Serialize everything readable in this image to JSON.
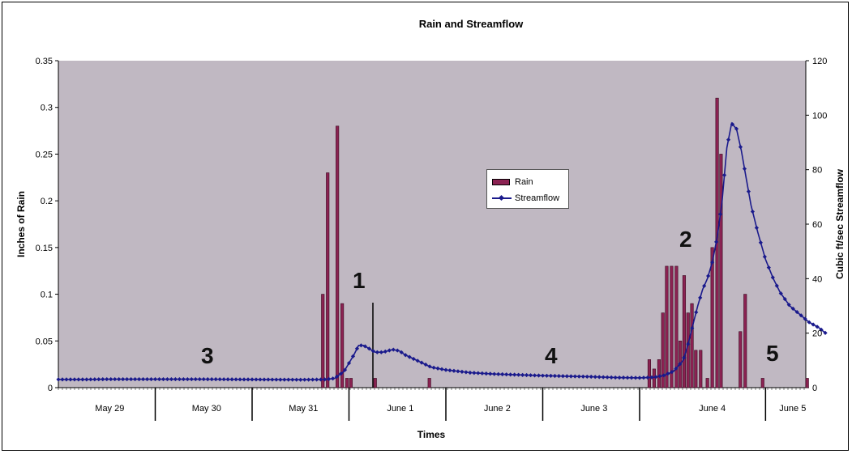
{
  "chart_data": {
    "type": "bar+line",
    "title": "Rain and Streamflow",
    "xlabel": "Times",
    "ylabel_left": "Inches of Rain",
    "ylabel_right": "Cubic ft/sec Streamflow",
    "ylim_left": [
      0,
      0.35
    ],
    "ylim_right": [
      0,
      120
    ],
    "yticks_left": [
      "0",
      "0.05",
      "0.1",
      "0.15",
      "0.2",
      "0.25",
      "0.3",
      "0.35"
    ],
    "yticks_right": [
      "0",
      "20",
      "40",
      "60",
      "80",
      "100",
      "120"
    ],
    "days": [
      "May 29",
      "May 30",
      "May 31",
      "June 1",
      "June 2",
      "June 3",
      "June 4",
      "June 5"
    ],
    "legend": {
      "position": "center-right",
      "rain_label": "Rain",
      "flow_label": "Streamflow"
    },
    "colors": {
      "plot_bg": "#c0b8c2",
      "rain": "#8b2252",
      "streamflow": "#1a1a8c"
    },
    "rain": [
      {
        "day": 2.73,
        "inches": 0.1
      },
      {
        "day": 2.78,
        "inches": 0.23
      },
      {
        "day": 2.88,
        "inches": 0.28
      },
      {
        "day": 2.93,
        "inches": 0.09
      },
      {
        "day": 2.98,
        "inches": 0.01
      },
      {
        "day": 3.02,
        "inches": 0.01
      },
      {
        "day": 3.27,
        "inches": 0.01
      },
      {
        "day": 3.83,
        "inches": 0.01
      },
      {
        "day": 6.1,
        "inches": 0.03
      },
      {
        "day": 6.15,
        "inches": 0.02
      },
      {
        "day": 6.2,
        "inches": 0.03
      },
      {
        "day": 6.24,
        "inches": 0.08
      },
      {
        "day": 6.28,
        "inches": 0.13
      },
      {
        "day": 6.33,
        "inches": 0.13
      },
      {
        "day": 6.38,
        "inches": 0.13
      },
      {
        "day": 6.42,
        "inches": 0.05
      },
      {
        "day": 6.46,
        "inches": 0.12
      },
      {
        "day": 6.5,
        "inches": 0.08
      },
      {
        "day": 6.54,
        "inches": 0.09
      },
      {
        "day": 6.58,
        "inches": 0.04
      },
      {
        "day": 6.63,
        "inches": 0.04
      },
      {
        "day": 6.7,
        "inches": 0.01
      },
      {
        "day": 6.75,
        "inches": 0.15
      },
      {
        "day": 6.8,
        "inches": 0.31
      },
      {
        "day": 6.84,
        "inches": 0.25
      },
      {
        "day": 7.04,
        "inches": 0.06
      },
      {
        "day": 7.09,
        "inches": 0.1
      },
      {
        "day": 7.27,
        "inches": 0.01
      },
      {
        "day": 7.73,
        "inches": 0.01
      }
    ],
    "streamflow": [
      [
        0.0,
        3.0
      ],
      [
        0.1,
        3.0
      ],
      [
        0.25,
        3.0
      ],
      [
        0.5,
        3.1
      ],
      [
        1.0,
        3.1
      ],
      [
        1.5,
        3.1
      ],
      [
        2.0,
        3.0
      ],
      [
        2.5,
        2.9
      ],
      [
        2.75,
        3.0
      ],
      [
        2.85,
        3.4
      ],
      [
        2.95,
        6.0
      ],
      [
        3.0,
        9.0
      ],
      [
        3.05,
        12.0
      ],
      [
        3.1,
        15.5
      ],
      [
        3.15,
        15.5
      ],
      [
        3.2,
        14.5
      ],
      [
        3.27,
        13.0
      ],
      [
        3.35,
        13.0
      ],
      [
        3.4,
        13.5
      ],
      [
        3.45,
        14.0
      ],
      [
        3.52,
        13.5
      ],
      [
        3.58,
        12.0
      ],
      [
        3.7,
        10.0
      ],
      [
        3.85,
        7.5
      ],
      [
        4.0,
        6.5
      ],
      [
        4.25,
        5.5
      ],
      [
        4.5,
        5.0
      ],
      [
        4.75,
        4.7
      ],
      [
        5.0,
        4.4
      ],
      [
        5.25,
        4.2
      ],
      [
        5.5,
        4.0
      ],
      [
        5.75,
        3.7
      ],
      [
        6.0,
        3.6
      ],
      [
        6.15,
        3.8
      ],
      [
        6.25,
        4.5
      ],
      [
        6.35,
        6.0
      ],
      [
        6.45,
        10.0
      ],
      [
        6.5,
        16.0
      ],
      [
        6.55,
        23.0
      ],
      [
        6.6,
        30.0
      ],
      [
        6.65,
        36.0
      ],
      [
        6.7,
        40.0
      ],
      [
        6.75,
        46.0
      ],
      [
        6.8,
        55.0
      ],
      [
        6.85,
        68.0
      ],
      [
        6.9,
        88.0
      ],
      [
        6.95,
        97.0
      ],
      [
        7.0,
        95.0
      ],
      [
        7.05,
        87.0
      ],
      [
        7.1,
        77.0
      ],
      [
        7.15,
        67.0
      ],
      [
        7.22,
        57.0
      ],
      [
        7.3,
        47.0
      ],
      [
        7.38,
        40.0
      ],
      [
        7.45,
        35.0
      ],
      [
        7.55,
        30.0
      ],
      [
        7.65,
        27.0
      ],
      [
        7.75,
        24.0
      ],
      [
        7.85,
        22.0
      ],
      [
        7.92,
        20.0
      ]
    ],
    "annotations": [
      "1",
      "2",
      "3",
      "4",
      "5"
    ]
  }
}
